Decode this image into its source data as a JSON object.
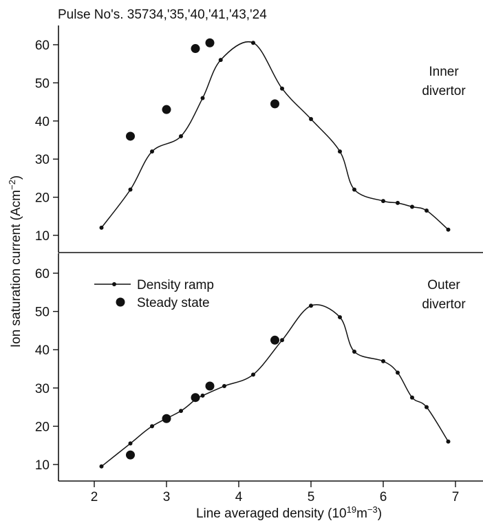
{
  "figure": {
    "title": "Pulse No's. 35734,'35,'40,'41,'43,'24",
    "xlabel": "Line averaged density (10",
    "xlabel_sup1": "19",
    "xlabel_mid": "m",
    "xlabel_sup2": "−3",
    "xlabel_end": ")",
    "ylabel": "Ion saturation current (Acm",
    "ylabel_sup": "−2",
    "ylabel_end": ")"
  },
  "chart_data": [
    {
      "type": "line",
      "panel_label_line1": "Inner",
      "panel_label_line2": "divertor",
      "xlim": [
        1.6,
        7.3
      ],
      "ylim": [
        5,
        65
      ],
      "xticks": [
        "2",
        "3",
        "4",
        "5",
        "6",
        "7"
      ],
      "yticks": [
        "10",
        "20",
        "30",
        "40",
        "50",
        "60"
      ],
      "series": [
        {
          "name": "Density ramp",
          "marker": "small-dot",
          "x": [
            2.1,
            2.5,
            2.8,
            3.2,
            3.5,
            3.75,
            4.2,
            4.6,
            5.0,
            5.4,
            5.6,
            6.0,
            6.2,
            6.4,
            6.6,
            6.9
          ],
          "y": [
            12,
            22,
            32,
            36,
            46,
            56,
            60.5,
            48.5,
            40.5,
            32,
            22,
            19,
            18.5,
            17.5,
            16.5,
            11.5
          ]
        },
        {
          "name": "Steady state",
          "marker": "large-dot",
          "x": [
            2.5,
            3.0,
            3.4,
            3.6,
            4.5
          ],
          "y": [
            36,
            43,
            59,
            60.5,
            44.5
          ]
        }
      ]
    },
    {
      "type": "line",
      "panel_label_line1": "Outer",
      "panel_label_line2": "divertor",
      "legend_location": "upper-left",
      "xlim": [
        1.6,
        7.3
      ],
      "ylim": [
        5,
        65
      ],
      "xticks": [
        "2",
        "3",
        "4",
        "5",
        "6",
        "7"
      ],
      "yticks": [
        "10",
        "20",
        "30",
        "40",
        "50",
        "60"
      ],
      "series": [
        {
          "name": "Density ramp",
          "marker": "small-dot",
          "x": [
            2.1,
            2.5,
            2.8,
            3.2,
            3.4,
            3.5,
            3.8,
            4.2,
            4.6,
            5.0,
            5.4,
            5.6,
            6.0,
            6.2,
            6.4,
            6.6,
            6.9
          ],
          "y": [
            9.5,
            15.5,
            20,
            24,
            27,
            28,
            30.5,
            33.5,
            42.5,
            51.5,
            48.5,
            39.5,
            37,
            34,
            27.5,
            25,
            16
          ]
        },
        {
          "name": "Steady state",
          "marker": "large-dot",
          "x": [
            2.5,
            3.0,
            3.4,
            3.6,
            4.5
          ],
          "y": [
            12.5,
            22,
            27.5,
            30.5,
            42.5
          ]
        }
      ]
    }
  ]
}
